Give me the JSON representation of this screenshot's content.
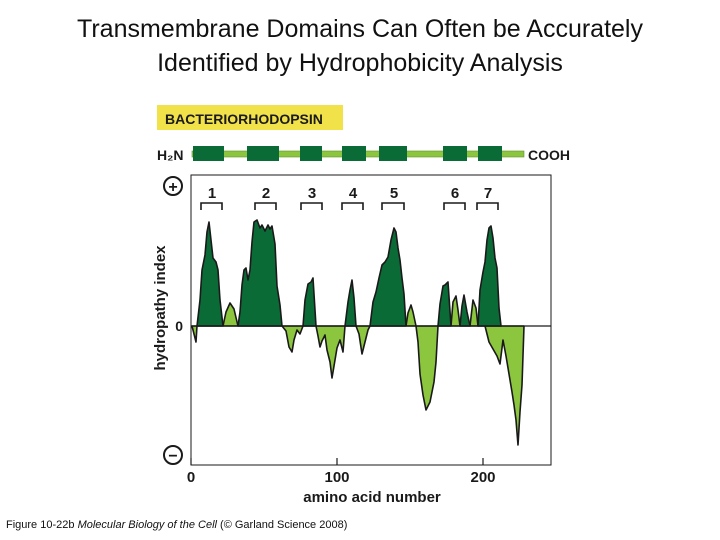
{
  "slide": {
    "title_line1": "Transmembrane Domains Can Often be Accurately",
    "title_line2": "Identified by Hydrophobicity Analysis"
  },
  "figure": {
    "protein_label": "BACTERIORHODOPSIN",
    "n_terminus": "H₂N",
    "c_terminus": "COOH",
    "plus_symbol": "+",
    "minus_symbol": "−",
    "zero_label": "0",
    "ylabel": "hydropathy index",
    "xlabel": "amino acid number",
    "x_ticks": [
      "0",
      "100",
      "200"
    ],
    "helices": [
      "1",
      "2",
      "3",
      "4",
      "5",
      "6",
      "7"
    ],
    "colors": {
      "label_box": "#f2e24a",
      "hydrophobic": "#0b6b37",
      "hydrophilic": "#8cc63f",
      "outline": "#1a1a1a"
    }
  },
  "caption": {
    "prefix": "Figure 10-22b",
    "book": "Molecular Biology of the Cell",
    "suffix": "(© Garland Science 2008)"
  }
}
